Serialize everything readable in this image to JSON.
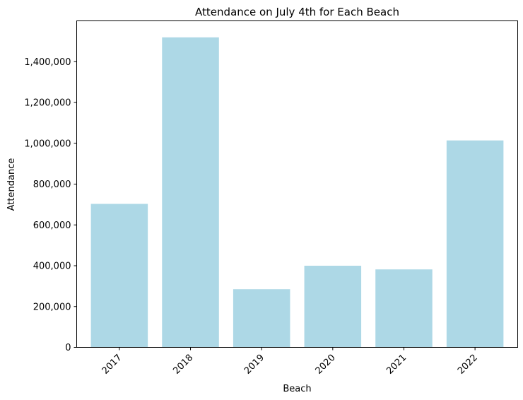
{
  "chart_data": {
    "type": "bar",
    "title": "Attendance on July 4th for Each Beach",
    "xlabel": "Beach",
    "ylabel": "Attendance",
    "categories": [
      "2017",
      "2018",
      "2019",
      "2020",
      "2021",
      "2022"
    ],
    "values": [
      703000,
      1519000,
      285000,
      400000,
      382000,
      1014000
    ],
    "ylim": [
      0,
      1600000
    ],
    "yticks": [
      0,
      200000,
      400000,
      600000,
      800000,
      1000000,
      1200000,
      1400000
    ],
    "ytick_labels": [
      "0",
      "200,000",
      "400,000",
      "600,000",
      "800,000",
      "1,000,000",
      "1,200,000",
      "1,400,000"
    ],
    "xtick_rotation_deg": 45,
    "grid": false,
    "legend": "none",
    "colors": {
      "bar": "#add8e6",
      "axes": "#000000",
      "background": "#ffffff"
    }
  }
}
